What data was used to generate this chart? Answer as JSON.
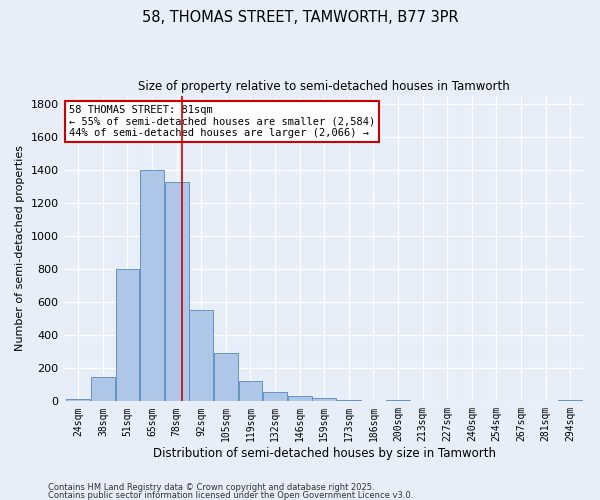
{
  "title": "58, THOMAS STREET, TAMWORTH, B77 3PR",
  "subtitle": "Size of property relative to semi-detached houses in Tamworth",
  "xlabel": "Distribution of semi-detached houses by size in Tamworth",
  "ylabel": "Number of semi-detached properties",
  "categories": [
    "24sqm",
    "38sqm",
    "51sqm",
    "65sqm",
    "78sqm",
    "92sqm",
    "105sqm",
    "119sqm",
    "132sqm",
    "146sqm",
    "159sqm",
    "173sqm",
    "186sqm",
    "200sqm",
    "213sqm",
    "227sqm",
    "240sqm",
    "254sqm",
    "267sqm",
    "281sqm",
    "294sqm"
  ],
  "values": [
    15,
    150,
    800,
    1400,
    1330,
    550,
    290,
    125,
    55,
    35,
    20,
    10,
    0,
    10,
    0,
    0,
    0,
    0,
    0,
    0,
    10
  ],
  "bar_color": "#aec6e8",
  "bar_edge_color": "#5588bb",
  "background_color": "#e8eef8",
  "grid_color": "#ffffff",
  "red_line_x": 4.2,
  "annotation_line1": "58 THOMAS STREET: 81sqm",
  "annotation_line2": "← 55% of semi-detached houses are smaller (2,584)",
  "annotation_line3": "44% of semi-detached houses are larger (2,066) →",
  "annotation_box_color": "#ffffff",
  "annotation_box_edge_color": "#cc0000",
  "footnote1": "Contains HM Land Registry data © Crown copyright and database right 2025.",
  "footnote2": "Contains public sector information licensed under the Open Government Licence v3.0.",
  "ylim": [
    0,
    1850
  ],
  "yticks": [
    0,
    200,
    400,
    600,
    800,
    1000,
    1200,
    1400,
    1600,
    1800
  ]
}
